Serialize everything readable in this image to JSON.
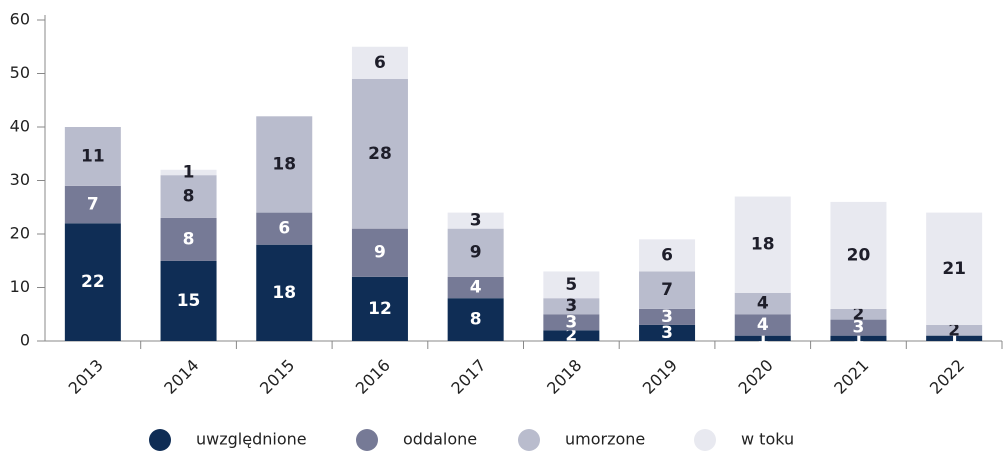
{
  "chart_data": {
    "type": "stacked_bar",
    "categories": [
      "2013",
      "2014",
      "2015",
      "2016",
      "2017",
      "2018",
      "2019",
      "2020",
      "2021",
      "2022"
    ],
    "series": [
      {
        "name": "uwzględnione",
        "color": "#0f2d55",
        "label_color": "#ffffff",
        "values": [
          22,
          15,
          18,
          12,
          8,
          2,
          3,
          1,
          1,
          1
        ]
      },
      {
        "name": "oddalone",
        "color": "#767a96",
        "label_color": "#ffffff",
        "values": [
          7,
          8,
          6,
          9,
          4,
          3,
          3,
          4,
          3,
          null
        ]
      },
      {
        "name": "umorzone",
        "color": "#b9bccd",
        "label_color": "#1e1e2a",
        "values": [
          11,
          8,
          18,
          28,
          9,
          3,
          7,
          4,
          2,
          2
        ]
      },
      {
        "name": "w toku",
        "color": "#e8e9f0",
        "label_color": "#1e1e2a",
        "values": [
          null,
          1,
          null,
          6,
          3,
          5,
          6,
          18,
          20,
          21
        ]
      }
    ],
    "ylim": [
      0,
      60
    ],
    "yticks": [
      0,
      10,
      20,
      30,
      40,
      50,
      60
    ],
    "legend": "bottom"
  }
}
